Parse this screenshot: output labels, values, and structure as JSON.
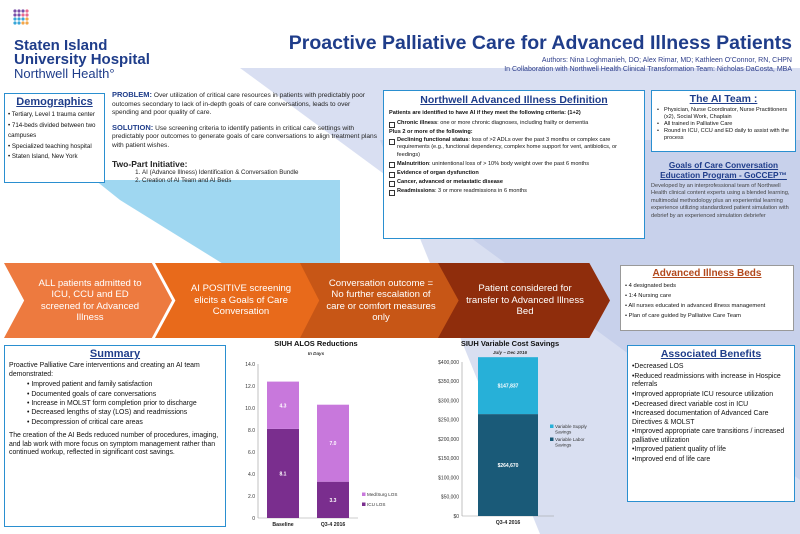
{
  "header": {
    "logo_line1": "Staten Island",
    "logo_line2": "University Hospital",
    "logo_line3": "Northwell Health°",
    "title": "Proactive Palliative Care for Advanced Illness Patients",
    "authors": "Authors: Nina Loghmanieh, DO; Alex Rimar, MD; Kathleen O’Connor, RN, CHPN",
    "collab": "In Collaboration with Northwell Health Clinical Transformation Team: Nicholas DaCosta, MBA"
  },
  "demographics": {
    "heading": "Demographics",
    "items": [
      "Tertiary, Level 1 trauma center",
      "714-beds divided between two campuses",
      "Specialized teaching hospital",
      "Staten Island, New York"
    ]
  },
  "problem": {
    "label": "PROBLEM:",
    "text": "Over utilization of critical care resources in patients with predictably poor outcomes secondary to lack of in-depth goals of care conversations, leads to over spending and poor quality of care.",
    "solution_label": "SOLUTION:",
    "solution_text": "Use screening criteria to identify patients in critical care settings with predictably poor outcomes to generate goals of care conversations to align treatment plans with patient wishes.",
    "initiative_heading": "Two-Part Initiative:",
    "initiative_items": [
      "AI (Advance Illness) Identification & Conversation Bundle",
      "Creation of AI Team and AI Beds"
    ]
  },
  "definition": {
    "heading": "Northwell Advanced Illness Definition",
    "criteria": "Patients are identified to have AI if they meet the following criteria: (1+2)",
    "chronic_label": "Chronic illness",
    "chronic_text": ": one or more chronic diagnoses, including frailty or dementia",
    "plus": "Plus 2 or more of the following:",
    "items": [
      {
        "label": "Declining functional status",
        "text": ": loss of >2 ADLs over the past 3 months or complex care requirements (e.g., functional dependency, complex home support for vent, antibiotics, or feedings)"
      },
      {
        "label": "Malnutrition",
        "text": ": unintentional loss of > 10% body weight over the past 6 months"
      },
      {
        "label": "Evidence of organ dysfunction",
        "text": ""
      },
      {
        "label": "Cancer, advanced or metastatic disease",
        "text": ""
      },
      {
        "label": "Readmissions",
        "text": ": 3 or more readmissions in 6 months"
      }
    ]
  },
  "team": {
    "heading": "The AI Team :",
    "items": [
      "Physician, Nurse Coordinator, Nurse Practitioners (x2), Social Work, Chaplain",
      "All trained in Palliative Care",
      "Round in ICU, CCU and ED daily to assist with the process"
    ]
  },
  "gcce": {
    "heading": "Goals of Care Conversation Education Program - GoCCEP™",
    "text": "Developed by an interprofessional team of Northwell Health clinical content experts using a blended learning, multimodal methodology plus an experiential learning experience utilizing standardized patient simulation with debrief by an experienced simulation debriefer"
  },
  "flow": {
    "step1": "ALL patients admitted to ICU, CCU and ED screened for Advanced Illness",
    "step2": "AI POSITIVE screening elicits a Goals of Care Conversation",
    "step3": "Conversation outcome = No further escalation of care or comfort measures only",
    "step4": "Patient considered for transfer to Advanced Illness Bed"
  },
  "beds": {
    "heading": "Advanced Illness Beds",
    "items": [
      "4 designated beds",
      "1:4 Nursing care",
      "All nurses educated in advanced illness management",
      "Plan of care guided by Palliative Care Team"
    ]
  },
  "summary": {
    "heading": "Summary",
    "intro": "Proactive Palliative Care interventions and creating an AI team demonstrated:",
    "items": [
      "Improved patient and family satisfaction",
      "Documented goals of care conversations",
      "Increase in MOLST form completion prior to discharge",
      "Decreased lengths of stay (LOS) and readmissions",
      "Decompression of critical care areas"
    ],
    "closing": "The creation of the AI Beds reduced number of procedures, imaging, and lab work with more focus on symptom management rather than continued workup, reflected in significant cost savings."
  },
  "benefits": {
    "heading": "Associated Benefits",
    "items": [
      "•Decreased LOS",
      "•Reduced readmissions with increase in Hospice referrals",
      "•Improved  appropriate ICU resource utilization",
      "•Decreased direct variable cost in ICU",
      "•Increased documentation of Advanced Care Directives & MOLST",
      "•Improved appropriate care transitions / increased palliative utilization",
      "•Improved patient quality of life",
      "•Improved end of life care"
    ]
  },
  "colors": {
    "navy": "#1f3d8a",
    "orange1": "#ed7a3f",
    "orange2": "#e86a1b",
    "orange3": "#c75616",
    "brown": "#8f2d0c",
    "purple_dark": "#7a2e8e",
    "purple_light": "#c878dc",
    "teal": "#27b0d8",
    "teal_dark": "#1a5a78"
  },
  "chart_data": [
    {
      "type": "bar",
      "stacked": true,
      "title": "SIUH ALOS Reductions",
      "subtitle": "In Days",
      "categories": [
        "Baseline",
        "Q3-4 2016"
      ],
      "series": [
        {
          "name": "ICU LOS",
          "values": [
            8.1,
            3.3
          ],
          "color": "#7a2e8e"
        },
        {
          "name": "Med/Surg LOS",
          "values": [
            4.3,
            7.0
          ],
          "color": "#c878dc"
        }
      ],
      "data_labels": [
        [
          "8.1",
          "4.3"
        ],
        [
          "3.3",
          "7.0"
        ]
      ],
      "ylim": [
        0,
        14
      ],
      "yticks": [
        "0",
        "2.0",
        "4.0",
        "6.0",
        "8.0",
        "10.0",
        "12.0",
        "14.0"
      ],
      "legend": [
        "Med/Surg LOS",
        "ICU LOS"
      ]
    },
    {
      "type": "bar",
      "stacked": true,
      "title": "SIUH Variable Cost Savings",
      "subtitle": "July – Dec 2016",
      "categories": [
        "Q3-4 2016"
      ],
      "series": [
        {
          "name": "Variable Labor Savings",
          "values": [
            264670
          ],
          "color": "#1a5a78"
        },
        {
          "name": "Variable Supply Savings",
          "values": [
            147837
          ],
          "color": "#27b0d8"
        }
      ],
      "data_labels": [
        [
          "$264,670",
          "$147,837"
        ]
      ],
      "ylim": [
        0,
        400000
      ],
      "yticks": [
        "$0",
        "$50,000",
        "$100,000",
        "$150,000",
        "$200,000",
        "$250,000",
        "$300,000",
        "$350,000",
        "$400,000"
      ],
      "legend": [
        "Variable Supply Savings",
        "Variable Labor Savings"
      ]
    }
  ]
}
